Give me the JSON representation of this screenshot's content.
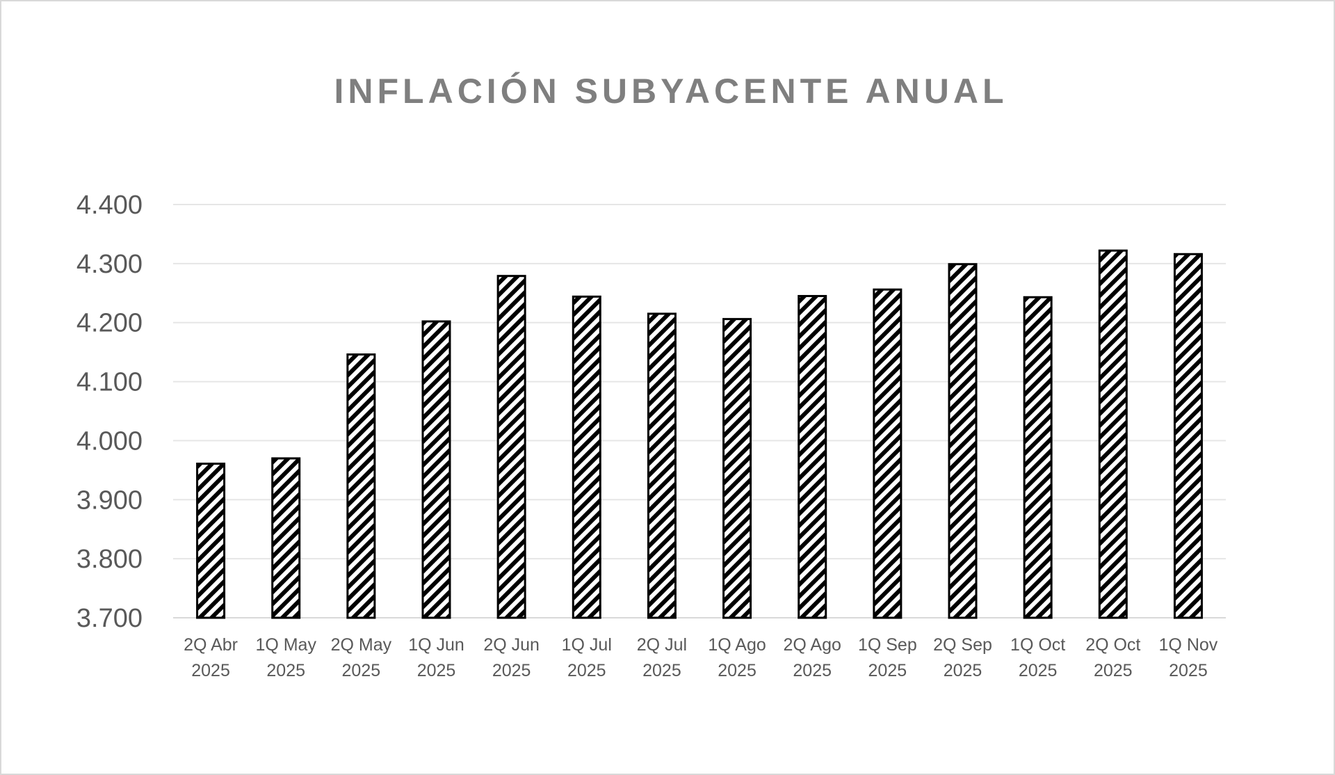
{
  "chart_data": {
    "type": "bar",
    "title": "INFLACIÓN SUBYACENTE ANUAL",
    "xlabel": "",
    "ylabel": "",
    "ylim": [
      3.7,
      4.4
    ],
    "yticks": [
      "3.700",
      "3.800",
      "3.900",
      "4.000",
      "4.100",
      "4.200",
      "4.300",
      "4.400"
    ],
    "grid": true,
    "legend": "none",
    "bar_fill": "black diagonal hatch on white",
    "categories": [
      [
        "2Q Abr",
        "2025"
      ],
      [
        "1Q May",
        "2025"
      ],
      [
        "2Q May",
        "2025"
      ],
      [
        "1Q Jun",
        "2025"
      ],
      [
        "2Q Jun",
        "2025"
      ],
      [
        "1Q Jul",
        "2025"
      ],
      [
        "2Q Jul",
        "2025"
      ],
      [
        "1Q Ago",
        "2025"
      ],
      [
        "2Q Ago",
        "2025"
      ],
      [
        "1Q Sep",
        "2025"
      ],
      [
        "2Q Sep",
        "2025"
      ],
      [
        "1Q Oct",
        "2025"
      ],
      [
        "2Q Oct",
        "2025"
      ],
      [
        "1Q Nov",
        "2025"
      ]
    ],
    "values": [
      3.961,
      3.97,
      4.146,
      4.202,
      4.279,
      4.244,
      4.215,
      4.206,
      4.245,
      4.256,
      4.299,
      4.243,
      4.322,
      4.316
    ],
    "colors": {
      "title": "#7f7f7f",
      "ticks": "#595959",
      "grid": "#e6e6e6",
      "bar_stroke": "#000000"
    }
  }
}
